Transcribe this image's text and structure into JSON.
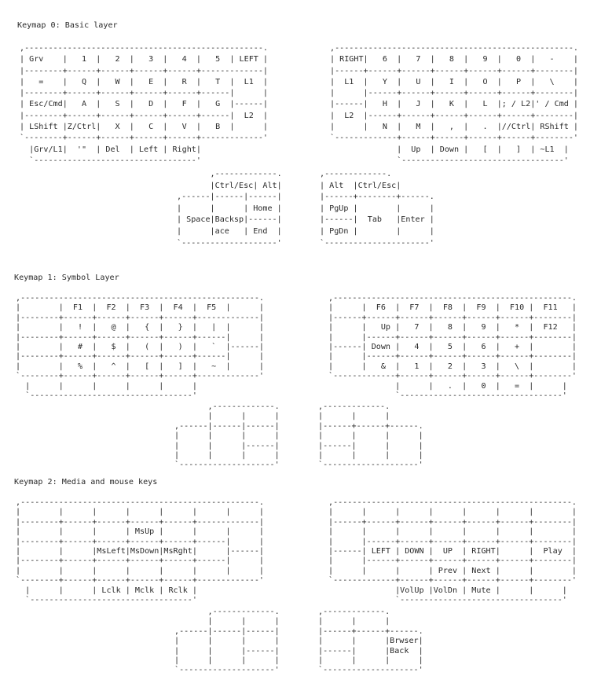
{
  "keymaps": [
    {
      "title": "Keymap 0: Basic layer",
      "left_hand": ",--------------------------------------------------.\n| Grv    |   1  |   2  |   3  |   4  |   5  | LEFT |\n|--------+------+------+------+------+-------------|\n|   =    |   Q  |   W  |   E  |   R  |   T  |  L1  |\n|--------+------+------+------+------+------|      |\n| Esc/Cmd|   A  |   S  |   D  |   F  |   G  |------|\n|--------+------+------+------+------+------|  L2  |\n| LShift |Z/Ctrl|   X  |   C  |   V  |   B  |      |\n`--------+------+------+------+------+-------------'\n  |Grv/L1|  '\"  | Del  | Left | Right|\n  `----------------------------------'",
      "right_hand": ",--------------------------------------------------.\n| RIGHT|   6  |   7  |   8  |   9  |   0  |   -    |\n|------+------+------+------+------+------+--------|\n|  L1  |   Y  |   U  |   I  |   O  |   P  |   \\    |\n|      |------+------+------+------+------+--------|\n|------|   H  |   J  |   K  |   L  |; / L2|' / Cmd |\n|  L2  |------+------+------+------+------+--------|\n|      |   N  |   M  |   ,  |   .  |//Ctrl| RShift |\n`-------------+------+------+------+------+--------'\n              |  Up  | Down |   [  |   ]  | ~L1  |\n              `----------------------------------'",
      "left_thumb": "       ,-------------.\n       |Ctrl/Esc| Alt|\n,------|------|------|\n|      |      | Home |\n| Space|Backsp|------|\n|      |ace   | End  |\n`--------------------'",
      "right_thumb": ",-------------.\n| Alt  |Ctrl/Esc|\n|------+--------+------.\n| PgUp |        |      |\n|------|  Tab   |Enter |\n| PgDn |        |      |\n`----------------------'"
    },
    {
      "title": "Keymap 1: Symbol Layer",
      "left_hand": ",--------------------------------------------------.\n|        |  F1  |  F2  |  F3  |  F4  |  F5  |      |\n|--------+------+------+------+------+-------------|\n|        |   !  |   @  |   {  |   }  |   |  |      |\n|--------+------+------+------+------+------|      |\n|        |   #  |   $  |   (  |   )  |   `  |------|\n|--------+------+------+------+------+------|      |\n|        |   %  |   ^  |   [  |   ]  |   ~  |      |\n`--------+------+------+------+------+-------------'\n  |      |      |      |      |      |\n  `----------------------------------'",
      "right_hand": ",--------------------------------------------------.\n|      |  F6  |  F7  |  F8  |  F9  |  F10 |  F11   |\n|------+------+------+------+------+------+--------|\n|      |   Up |   7  |   8  |   9  |   *  |  F12   |\n|      |------+------+------+------+------+--------|\n|------| Down |   4  |   5  |   6  |   +  |        |\n|      |------+------+------+------+------+--------|\n|      |   &  |   1  |   2  |   3  |   \\  |        |\n`-------------+------+------+------+------+--------'\n              |      |   .  |   0  |   =  |      |\n              `----------------------------------'",
      "left_thumb": "       ,-------------.\n       |      |      |\n,------|------|------|\n|      |      |      |\n|      |      |------|\n|      |      |      |\n`--------------------'",
      "right_thumb": ",-------------.\n|      |      |\n|------+------+------.\n|      |      |      |\n|------|      |      |\n|      |      |      |\n`--------------------'"
    },
    {
      "title": "Keymap 2: Media and mouse keys",
      "left_hand": ",--------------------------------------------------.\n|        |      |      |      |      |      |      |\n|--------+------+------+------+------+-------------|\n|        |      |      | MsUp |      |      |      |\n|--------+------+------+------+------+------|      |\n|        |      |MsLeft|MsDown|MsRght|      |------|\n|--------+------+------+------+------+------|      |\n|        |      |      |      |      |      |      |\n`--------+------+------+------+------+-------------'\n  |      |      | Lclk | Mclk | Rclk |\n  `----------------------------------'",
      "right_hand": ",--------------------------------------------------.\n|      |      |      |      |      |      |        |\n|------+------+------+------+------+------+--------|\n|      |      |      |      |      |      |        |\n|      |------+------+------+------+------+--------|\n|------| LEFT | DOWN |  UP  | RIGHT|      |  Play  |\n|      |------+------+------+------+------+--------|\n|      |      |      | Prev | Next |      |        |\n`-------------+------+------+------+------+--------'\n              |VolUp |VolDn | Mute |      |      |\n              `----------------------------------'",
      "left_thumb": "       ,-------------.\n       |      |      |\n,------|------|------|\n|      |      |      |\n|      |      |------|\n|      |      |      |\n`--------------------'",
      "right_thumb": ",-------------.\n|      |      |\n|------+------+------.\n|      |      |Brwser|\n|------|      |Back  |\n|      |      |      |\n`--------------------'"
    }
  ]
}
